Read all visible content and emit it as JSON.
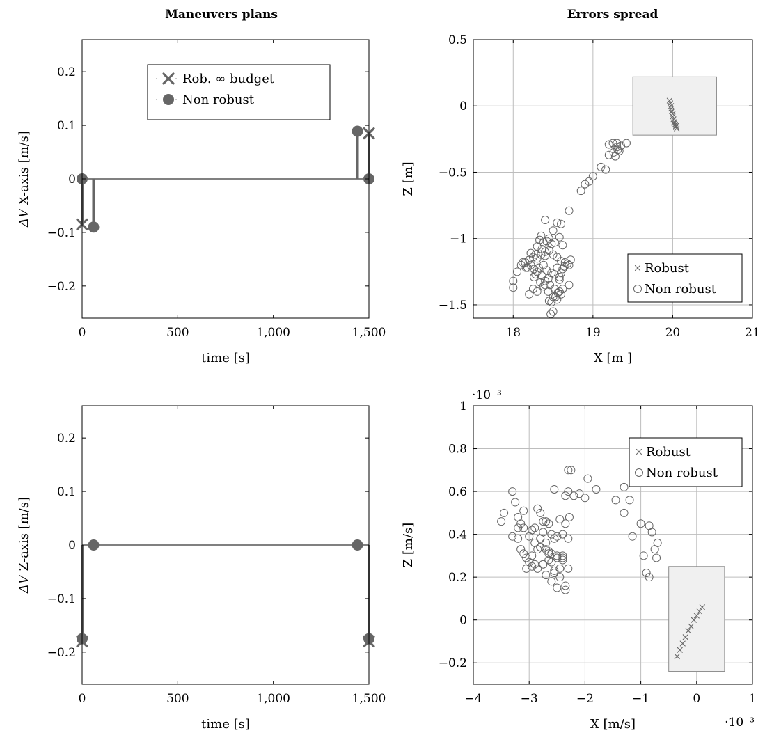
{
  "columns": {
    "left_title": "Maneuvers plans",
    "right_title": "Errors spread"
  },
  "colors": {
    "series": "#666666",
    "box": "#f0f0f0",
    "box_stroke": "#8c8c8c",
    "grid": "#bdbdbd"
  },
  "chart_data": [
    {
      "id": "dvx",
      "type": "stem",
      "title": "",
      "xlabel": "time [s]",
      "ylabel_italic": "ΔV",
      "ylabel": " X-axis [m/s]",
      "xlim": [
        0,
        1500
      ],
      "ylim": [
        -0.26,
        0.26
      ],
      "xticks": [
        0,
        500,
        1000,
        1500
      ],
      "xtick_labels": [
        "0",
        "500",
        "1,000",
        "1,500"
      ],
      "yticks": [
        -0.2,
        -0.1,
        0,
        0.1,
        0.2
      ],
      "ytick_labels": [
        "−0.2",
        "−0.1",
        "0",
        "0.1",
        "0.2"
      ],
      "grid": false,
      "legend_position": "top-center",
      "series": [
        {
          "name": "Rob. ∞ budget",
          "marker": "x",
          "x": [
            0,
            1500
          ],
          "y": [
            -0.085,
            0.085
          ]
        },
        {
          "name": "Non robust",
          "marker": "o",
          "x": [
            0,
            60,
            1440,
            1500
          ],
          "y": [
            0,
            -0.09,
            0.089,
            0
          ]
        }
      ]
    },
    {
      "id": "pos",
      "type": "scatter",
      "title": "",
      "xlabel": "X [m ]",
      "ylabel": "Z [m]",
      "xlim": [
        17.5,
        21
      ],
      "ylim": [
        -1.6,
        0.5
      ],
      "xticks": [
        18,
        19,
        20,
        21
      ],
      "xtick_labels": [
        "18",
        "19",
        "20",
        "21"
      ],
      "yticks": [
        -1.5,
        -1,
        -0.5,
        0,
        0.5
      ],
      "ytick_labels": [
        "−1.5",
        "−1",
        "−0.5",
        "0",
        "0.5"
      ],
      "grid": true,
      "legend_position": "bottom-right",
      "highlight_box": {
        "x": [
          19.5,
          20.55
        ],
        "y": [
          -0.22,
          0.22
        ]
      },
      "series": [
        {
          "name": "Robust",
          "marker": "x",
          "x": [
            19.96,
            19.97,
            19.98,
            19.98,
            19.99,
            20.0,
            20.0,
            20.01,
            20.02,
            20.02,
            20.03,
            20.04,
            20.04,
            20.05
          ],
          "y": [
            0.04,
            0.02,
            0.0,
            -0.02,
            -0.04,
            -0.06,
            -0.08,
            -0.1,
            -0.12,
            -0.13,
            -0.14,
            -0.15,
            -0.16,
            -0.17
          ]
        },
        {
          "name": "Non robust",
          "marker": "o",
          "x": [
            19.3,
            19.35,
            19.2,
            19.26,
            19.33,
            19.25,
            19.3,
            19.28,
            19.31,
            19.42,
            19.2,
            19.1,
            19.16,
            19.0,
            18.95,
            18.9,
            18.85,
            18.7,
            18.4,
            18.55,
            18.6,
            18.5,
            18.45,
            18.35,
            18.33,
            18.38,
            18.42,
            18.48,
            18.52,
            18.58,
            18.62,
            18.3,
            18.36,
            18.4,
            18.28,
            18.25,
            18.22,
            18.2,
            18.15,
            18.1,
            18.18,
            18.3,
            18.35,
            18.4,
            18.45,
            18.5,
            18.55,
            18.6,
            18.65,
            18.7,
            18.32,
            18.38,
            18.42,
            18.48,
            18.55,
            18.62,
            18.68,
            18.72,
            18.36,
            18.44,
            18.52,
            18.58,
            18.64,
            18.3,
            18.28,
            18.26,
            18.34,
            18.4,
            18.46,
            18.52,
            18.58,
            18.6,
            18.5,
            18.55,
            18.45,
            18.4,
            18.38,
            18.44,
            18.48,
            18.53,
            18.56,
            18.62,
            18.7,
            18.5,
            18.47,
            18.58,
            18.6,
            18.3,
            18.25,
            18.2,
            18.0,
            18.0,
            18.05,
            18.12,
            18.16,
            18.22,
            18.26
          ],
          "y": [
            -0.28,
            -0.3,
            -0.29,
            -0.35,
            -0.34,
            -0.28,
            -0.31,
            -0.38,
            -0.33,
            -0.28,
            -0.37,
            -0.46,
            -0.48,
            -0.53,
            -0.57,
            -0.59,
            -0.64,
            -0.79,
            -0.86,
            -0.88,
            -0.89,
            -0.94,
            -1.0,
            -0.98,
            -1.01,
            -1.03,
            -1.02,
            -1.04,
            -1.03,
            -0.99,
            -1.05,
            -1.06,
            -1.08,
            -1.1,
            -1.12,
            -1.14,
            -1.11,
            -1.16,
            -1.18,
            -1.2,
            -1.22,
            -1.15,
            -1.12,
            -1.13,
            -1.09,
            -1.12,
            -1.14,
            -1.17,
            -1.18,
            -1.2,
            -1.22,
            -1.2,
            -1.24,
            -1.26,
            -1.22,
            -1.23,
            -1.19,
            -1.16,
            -1.28,
            -1.3,
            -1.27,
            -1.31,
            -1.21,
            -1.25,
            -1.27,
            -1.29,
            -1.33,
            -1.35,
            -1.35,
            -1.38,
            -1.4,
            -1.42,
            -1.44,
            -1.46,
            -1.47,
            -1.32,
            -1.36,
            -1.4,
            -1.48,
            -1.44,
            -1.41,
            -1.38,
            -1.35,
            -1.55,
            -1.57,
            -1.29,
            -1.26,
            -1.4,
            -1.38,
            -1.42,
            -1.32,
            -1.37,
            -1.25,
            -1.18,
            -1.22,
            -1.2,
            -1.23
          ]
        }
      ]
    },
    {
      "id": "dvz",
      "type": "stem",
      "title": "",
      "xlabel": "time [s]",
      "ylabel_italic": "ΔV",
      "ylabel": " Z-axis [m/s]",
      "xlim": [
        0,
        1500
      ],
      "ylim": [
        -0.26,
        0.26
      ],
      "xticks": [
        0,
        500,
        1000,
        1500
      ],
      "xtick_labels": [
        "0",
        "500",
        "1,000",
        "1,500"
      ],
      "yticks": [
        -0.2,
        -0.1,
        0,
        0.1,
        0.2
      ],
      "ytick_labels": [
        "−0.2",
        "−0.1",
        "0",
        "0.1",
        "0.2"
      ],
      "grid": false,
      "series": [
        {
          "name": "Rob. ∞ budget",
          "marker": "x",
          "x": [
            0,
            1500
          ],
          "y": [
            -0.18,
            -0.18
          ]
        },
        {
          "name": "Non robust",
          "marker": "o",
          "x": [
            0,
            60,
            1440,
            1500
          ],
          "y": [
            -0.175,
            0,
            0,
            -0.175
          ]
        }
      ]
    },
    {
      "id": "vel",
      "type": "scatter",
      "title": "",
      "xlabel": "X [m/s]",
      "ylabel": "Z [m/s]",
      "x_scale_label": "·10⁻³",
      "y_scale_label": "·10⁻³",
      "xlim": [
        -4,
        1
      ],
      "ylim": [
        -0.3,
        1
      ],
      "xticks": [
        -4,
        -3,
        -2,
        -1,
        0,
        1
      ],
      "xtick_labels": [
        "−4",
        "−3",
        "−2",
        "−1",
        "0",
        "1"
      ],
      "yticks": [
        -0.2,
        0,
        0.2,
        0.4,
        0.6,
        0.8,
        1
      ],
      "ytick_labels": [
        "−0.2",
        "0",
        "0.2",
        "0.4",
        "0.6",
        "0.8",
        "1"
      ],
      "grid": true,
      "legend_position": "top-right",
      "highlight_box": {
        "x": [
          -0.5,
          0.5
        ],
        "y": [
          -0.24,
          0.25
        ]
      },
      "series": [
        {
          "name": "Robust",
          "marker": "x",
          "x": [
            -0.35,
            -0.3,
            -0.25,
            -0.2,
            -0.15,
            -0.1,
            -0.05,
            0.0,
            0.05,
            0.1
          ],
          "y": [
            -0.17,
            -0.14,
            -0.11,
            -0.08,
            -0.05,
            -0.03,
            0.0,
            0.02,
            0.04,
            0.06
          ]
        },
        {
          "name": "Non robust",
          "marker": "o",
          "x": [
            -3.5,
            -3.45,
            -3.3,
            -3.25,
            -3.2,
            -3.15,
            -3.1,
            -3.0,
            -2.95,
            -2.9,
            -2.85,
            -2.8,
            -2.75,
            -2.7,
            -2.65,
            -2.6,
            -2.55,
            -2.5,
            -2.45,
            -2.4,
            -2.35,
            -2.3,
            -2.25,
            -2.2,
            -2.3,
            -2.28,
            -2.35,
            -2.1,
            -2.0,
            -1.95,
            -1.8,
            -1.3,
            -1.45,
            -1.3,
            -1.2,
            -1.15,
            -1.0,
            -0.95,
            -0.85,
            -0.8,
            -0.75,
            -0.7,
            -0.72,
            -0.9,
            -0.85,
            -3.2,
            -3.1,
            -3.0,
            -2.9,
            -2.8,
            -2.7,
            -2.6,
            -2.5,
            -2.4,
            -2.3,
            -3.05,
            -2.95,
            -2.85,
            -2.75,
            -2.65,
            -2.55,
            -2.45,
            -2.35,
            -3.15,
            -3.05,
            -2.95,
            -2.85,
            -2.75,
            -2.65,
            -2.55,
            -2.45,
            -3.3,
            -3.2,
            -3.1,
            -2.9,
            -2.8,
            -2.7,
            -2.6,
            -2.5,
            -2.4,
            -2.35,
            -2.5,
            -2.6,
            -2.7,
            -2.8,
            -2.3,
            -2.4,
            -2.55,
            -2.65,
            -2.75
          ],
          "y": [
            0.46,
            0.5,
            0.6,
            0.55,
            0.48,
            0.45,
            0.43,
            0.39,
            0.42,
            0.43,
            0.52,
            0.5,
            0.46,
            0.46,
            0.45,
            0.4,
            0.61,
            0.39,
            0.47,
            0.4,
            0.58,
            0.6,
            0.7,
            0.58,
            0.7,
            0.48,
            0.45,
            0.59,
            0.57,
            0.66,
            0.61,
            0.62,
            0.56,
            0.5,
            0.56,
            0.39,
            0.45,
            0.3,
            0.44,
            0.41,
            0.33,
            0.36,
            0.29,
            0.22,
            0.2,
            0.38,
            0.31,
            0.27,
            0.26,
            0.34,
            0.36,
            0.31,
            0.3,
            0.29,
            0.38,
            0.24,
            0.3,
            0.33,
            0.26,
            0.31,
            0.23,
            0.2,
            0.16,
            0.33,
            0.29,
            0.25,
            0.24,
            0.26,
            0.28,
            0.22,
            0.24,
            0.39,
            0.43,
            0.51,
            0.36,
            0.38,
            0.33,
            0.27,
            0.15,
            0.28,
            0.14,
            0.29,
            0.18,
            0.21,
            0.34,
            0.24,
            0.3,
            0.38,
            0.32,
            0.41
          ]
        }
      ]
    }
  ]
}
